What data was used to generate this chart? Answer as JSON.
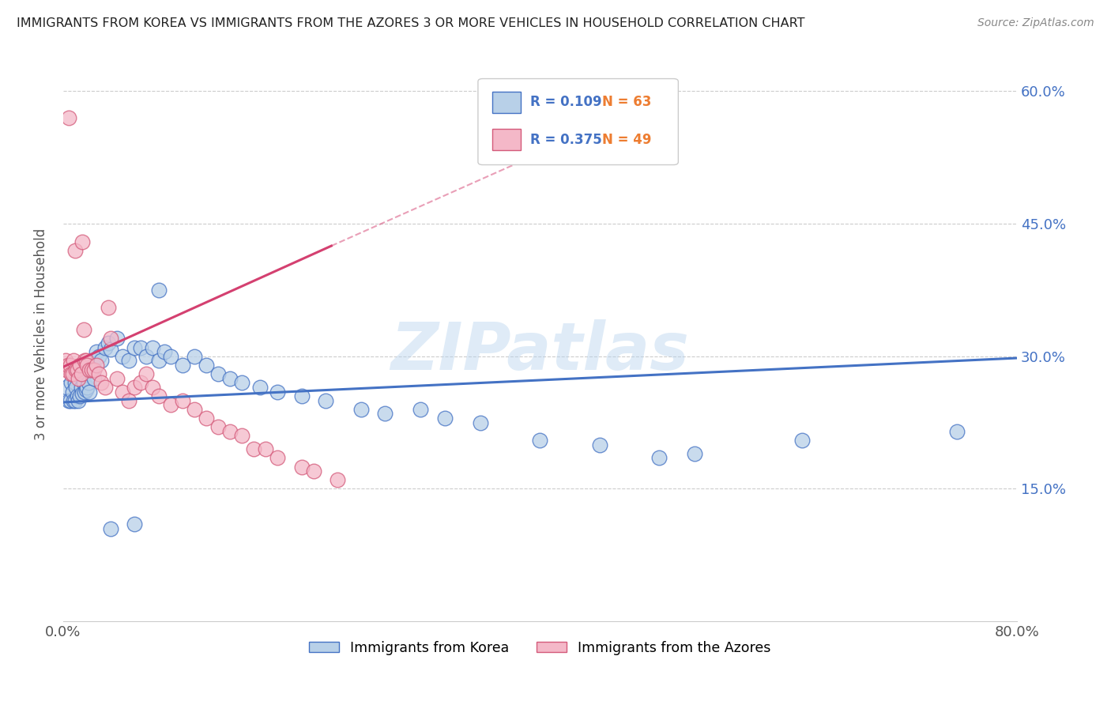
{
  "title": "IMMIGRANTS FROM KOREA VS IMMIGRANTS FROM THE AZORES 3 OR MORE VEHICLES IN HOUSEHOLD CORRELATION CHART",
  "source": "Source: ZipAtlas.com",
  "ylabel": "3 or more Vehicles in Household",
  "xlim": [
    0.0,
    0.8
  ],
  "ylim": [
    0.0,
    0.65
  ],
  "xtick_positions": [
    0.0,
    0.1,
    0.2,
    0.3,
    0.4,
    0.5,
    0.6,
    0.7,
    0.8
  ],
  "xticklabels": [
    "0.0%",
    "",
    "",
    "",
    "",
    "",
    "",
    "",
    "80.0%"
  ],
  "ytick_positions": [
    0.15,
    0.3,
    0.45,
    0.6
  ],
  "ytick_labels": [
    "15.0%",
    "30.0%",
    "45.0%",
    "60.0%"
  ],
  "watermark": "ZIPatlas",
  "korea_color": "#b8d0e8",
  "azores_color": "#f4b8c8",
  "korea_edge_color": "#4472c4",
  "azores_edge_color": "#d45a7a",
  "korea_line_color": "#4472c4",
  "azores_line_color": "#d44070",
  "legend_R_color": "#4472c4",
  "legend_N_color": "#ed7d31",
  "korea_scatter_x": [
    0.003,
    0.005,
    0.006,
    0.007,
    0.008,
    0.009,
    0.01,
    0.01,
    0.011,
    0.012,
    0.013,
    0.014,
    0.015,
    0.016,
    0.017,
    0.018,
    0.019,
    0.02,
    0.021,
    0.022,
    0.024,
    0.025,
    0.026,
    0.028,
    0.03,
    0.032,
    0.035,
    0.038,
    0.04,
    0.045,
    0.05,
    0.055,
    0.06,
    0.065,
    0.07,
    0.075,
    0.08,
    0.085,
    0.09,
    0.1,
    0.11,
    0.12,
    0.13,
    0.14,
    0.15,
    0.165,
    0.18,
    0.2,
    0.22,
    0.25,
    0.27,
    0.3,
    0.32,
    0.35,
    0.4,
    0.45,
    0.5,
    0.53,
    0.62,
    0.75,
    0.04,
    0.06,
    0.08
  ],
  "korea_scatter_y": [
    0.265,
    0.25,
    0.25,
    0.27,
    0.26,
    0.25,
    0.27,
    0.25,
    0.265,
    0.255,
    0.25,
    0.255,
    0.265,
    0.258,
    0.27,
    0.26,
    0.262,
    0.265,
    0.27,
    0.26,
    0.285,
    0.29,
    0.275,
    0.305,
    0.3,
    0.295,
    0.31,
    0.315,
    0.308,
    0.32,
    0.3,
    0.295,
    0.31,
    0.31,
    0.3,
    0.31,
    0.295,
    0.305,
    0.3,
    0.29,
    0.3,
    0.29,
    0.28,
    0.275,
    0.27,
    0.265,
    0.26,
    0.255,
    0.25,
    0.24,
    0.235,
    0.24,
    0.23,
    0.225,
    0.205,
    0.2,
    0.185,
    0.19,
    0.205,
    0.215,
    0.105,
    0.11,
    0.375
  ],
  "azores_scatter_x": [
    0.002,
    0.003,
    0.004,
    0.005,
    0.006,
    0.007,
    0.008,
    0.009,
    0.01,
    0.011,
    0.012,
    0.013,
    0.014,
    0.015,
    0.016,
    0.017,
    0.018,
    0.019,
    0.02,
    0.022,
    0.024,
    0.026,
    0.028,
    0.03,
    0.032,
    0.035,
    0.038,
    0.04,
    0.045,
    0.05,
    0.055,
    0.06,
    0.065,
    0.07,
    0.075,
    0.08,
    0.09,
    0.1,
    0.11,
    0.12,
    0.13,
    0.14,
    0.15,
    0.16,
    0.17,
    0.18,
    0.2,
    0.21,
    0.23
  ],
  "azores_scatter_y": [
    0.295,
    0.285,
    0.29,
    0.57,
    0.29,
    0.28,
    0.28,
    0.295,
    0.42,
    0.285,
    0.285,
    0.275,
    0.29,
    0.28,
    0.43,
    0.33,
    0.295,
    0.295,
    0.29,
    0.285,
    0.285,
    0.285,
    0.29,
    0.28,
    0.27,
    0.265,
    0.355,
    0.32,
    0.275,
    0.26,
    0.25,
    0.265,
    0.27,
    0.28,
    0.265,
    0.255,
    0.245,
    0.25,
    0.24,
    0.23,
    0.22,
    0.215,
    0.21,
    0.195,
    0.195,
    0.185,
    0.175,
    0.17,
    0.16
  ],
  "korea_trend_x": [
    0.0,
    0.8
  ],
  "korea_trend_y": [
    0.248,
    0.298
  ],
  "azores_trend_x": [
    0.0,
    0.225
  ],
  "azores_trend_y": [
    0.288,
    0.425
  ]
}
